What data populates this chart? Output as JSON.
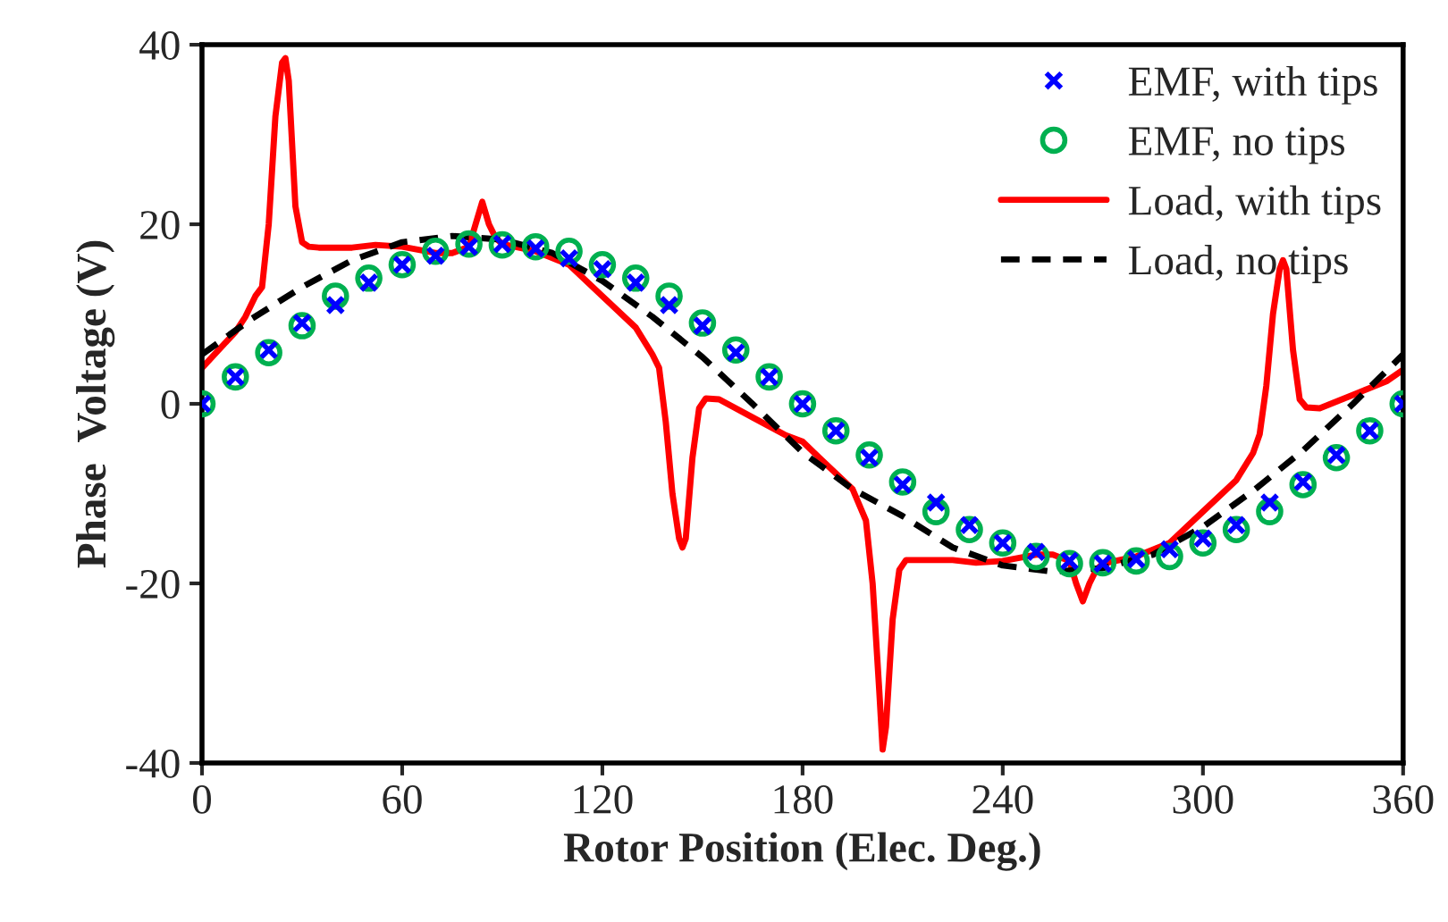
{
  "chart_data": {
    "type": "line",
    "xlabel": "Rotor Position (Elec. Deg.)",
    "ylabel": "Phase  Voltage (V)",
    "xlim": [
      0,
      360
    ],
    "ylim": [
      -40,
      40
    ],
    "xticks": [
      0,
      60,
      120,
      180,
      240,
      300,
      360
    ],
    "yticks": [
      -40,
      -20,
      0,
      20,
      40
    ],
    "grid": false,
    "legend": "top right",
    "series": [
      {
        "name": "EMF, with tips",
        "type": "scatter",
        "marker": "cross",
        "color": "#0000ff",
        "x": [
          0,
          10,
          20,
          30,
          40,
          50,
          60,
          70,
          80,
          90,
          100,
          110,
          120,
          130,
          140,
          150,
          160,
          170,
          180,
          190,
          200,
          210,
          220,
          230,
          240,
          250,
          260,
          270,
          280,
          290,
          300,
          310,
          320,
          330,
          340,
          350,
          360
        ],
        "values": [
          0,
          3,
          6,
          9,
          11,
          13.5,
          15.5,
          16.5,
          17.5,
          17.8,
          17.3,
          16.2,
          15,
          13.5,
          11,
          8.7,
          5.7,
          3,
          0,
          -3,
          -6,
          -9,
          -11,
          -13.5,
          -15.5,
          -16.5,
          -17.5,
          -17.8,
          -17.3,
          -16.2,
          -15,
          -13.5,
          -11,
          -8.7,
          -5.7,
          -3,
          0
        ]
      },
      {
        "name": "EMF, no tips",
        "type": "scatter",
        "marker": "circle",
        "color": "#00b050",
        "x": [
          0,
          10,
          20,
          30,
          40,
          50,
          60,
          70,
          80,
          90,
          100,
          110,
          120,
          130,
          140,
          150,
          160,
          170,
          180,
          190,
          200,
          210,
          220,
          230,
          240,
          250,
          260,
          270,
          280,
          290,
          300,
          310,
          320,
          330,
          340,
          350,
          360
        ],
        "values": [
          0,
          3,
          5.7,
          8.7,
          12,
          14,
          15.5,
          17,
          17.8,
          17.7,
          17.5,
          17,
          15.5,
          14,
          12,
          9,
          6,
          3,
          0,
          -3,
          -5.7,
          -8.7,
          -12,
          -14,
          -15.5,
          -17,
          -17.8,
          -17.7,
          -17.5,
          -17,
          -15.5,
          -14,
          -12,
          -9,
          -6,
          -3,
          0
        ]
      },
      {
        "name": "Load, with tips",
        "line_style": "solid",
        "color": "#ff0000",
        "x": [
          0,
          5,
          10,
          13,
          16,
          18,
          20,
          22,
          24,
          25,
          26,
          28,
          30,
          32,
          35,
          45,
          52,
          60,
          70,
          75,
          80,
          82,
          84,
          86,
          88,
          90,
          100,
          110,
          120,
          130,
          135,
          137,
          139,
          141,
          143,
          144,
          145,
          147,
          149,
          151,
          155,
          165,
          175,
          180,
          185,
          195,
          199,
          201,
          203,
          204,
          205,
          207,
          209,
          211,
          215,
          225,
          232,
          240,
          250,
          255,
          260,
          262,
          264,
          266,
          268,
          270,
          280,
          290,
          300,
          310,
          315,
          317,
          319,
          321,
          323,
          324,
          325,
          327,
          329,
          331,
          335,
          345,
          355,
          360
        ],
        "values": [
          4,
          6,
          8,
          9.7,
          12,
          13,
          20,
          32,
          38,
          38.5,
          36,
          22,
          18,
          17.5,
          17.4,
          17.4,
          17.7,
          17.5,
          16.8,
          16.8,
          17.5,
          20,
          22.5,
          20,
          18.5,
          17.8,
          17,
          15.5,
          12,
          8.5,
          5.5,
          4,
          -2,
          -10,
          -15,
          -16,
          -15,
          -6,
          -0.5,
          0.6,
          0.5,
          -1.5,
          -3.5,
          -4.2,
          -6,
          -9.5,
          -13,
          -20,
          -32,
          -38.5,
          -36,
          -24,
          -18.5,
          -17.4,
          -17.4,
          -17.4,
          -17.7,
          -17.5,
          -16.8,
          -16.8,
          -17.5,
          -20,
          -22,
          -20,
          -18.5,
          -17.8,
          -17,
          -15.5,
          -12,
          -8.5,
          -5.5,
          -3.4,
          2,
          10,
          15,
          16,
          15,
          6,
          0.5,
          -0.4,
          -0.5,
          1,
          2.5,
          3.8
        ]
      },
      {
        "name": "Load, no tips",
        "line_style": "dashed",
        "color": "#000000",
        "x": [
          0,
          15,
          30,
          45,
          60,
          75,
          90,
          105,
          120,
          135,
          150,
          165,
          180,
          195,
          210,
          225,
          240,
          255,
          270,
          285,
          300,
          315,
          330,
          345,
          360
        ],
        "values": [
          5.5,
          9.5,
          13,
          16,
          18,
          18.7,
          18.3,
          16.8,
          13.7,
          9.7,
          5.2,
          0,
          -5.4,
          -9.5,
          -12.5,
          -16,
          -18,
          -18.7,
          -18.3,
          -16.8,
          -13.7,
          -9.7,
          -5.2,
          0,
          5.5
        ]
      }
    ]
  }
}
